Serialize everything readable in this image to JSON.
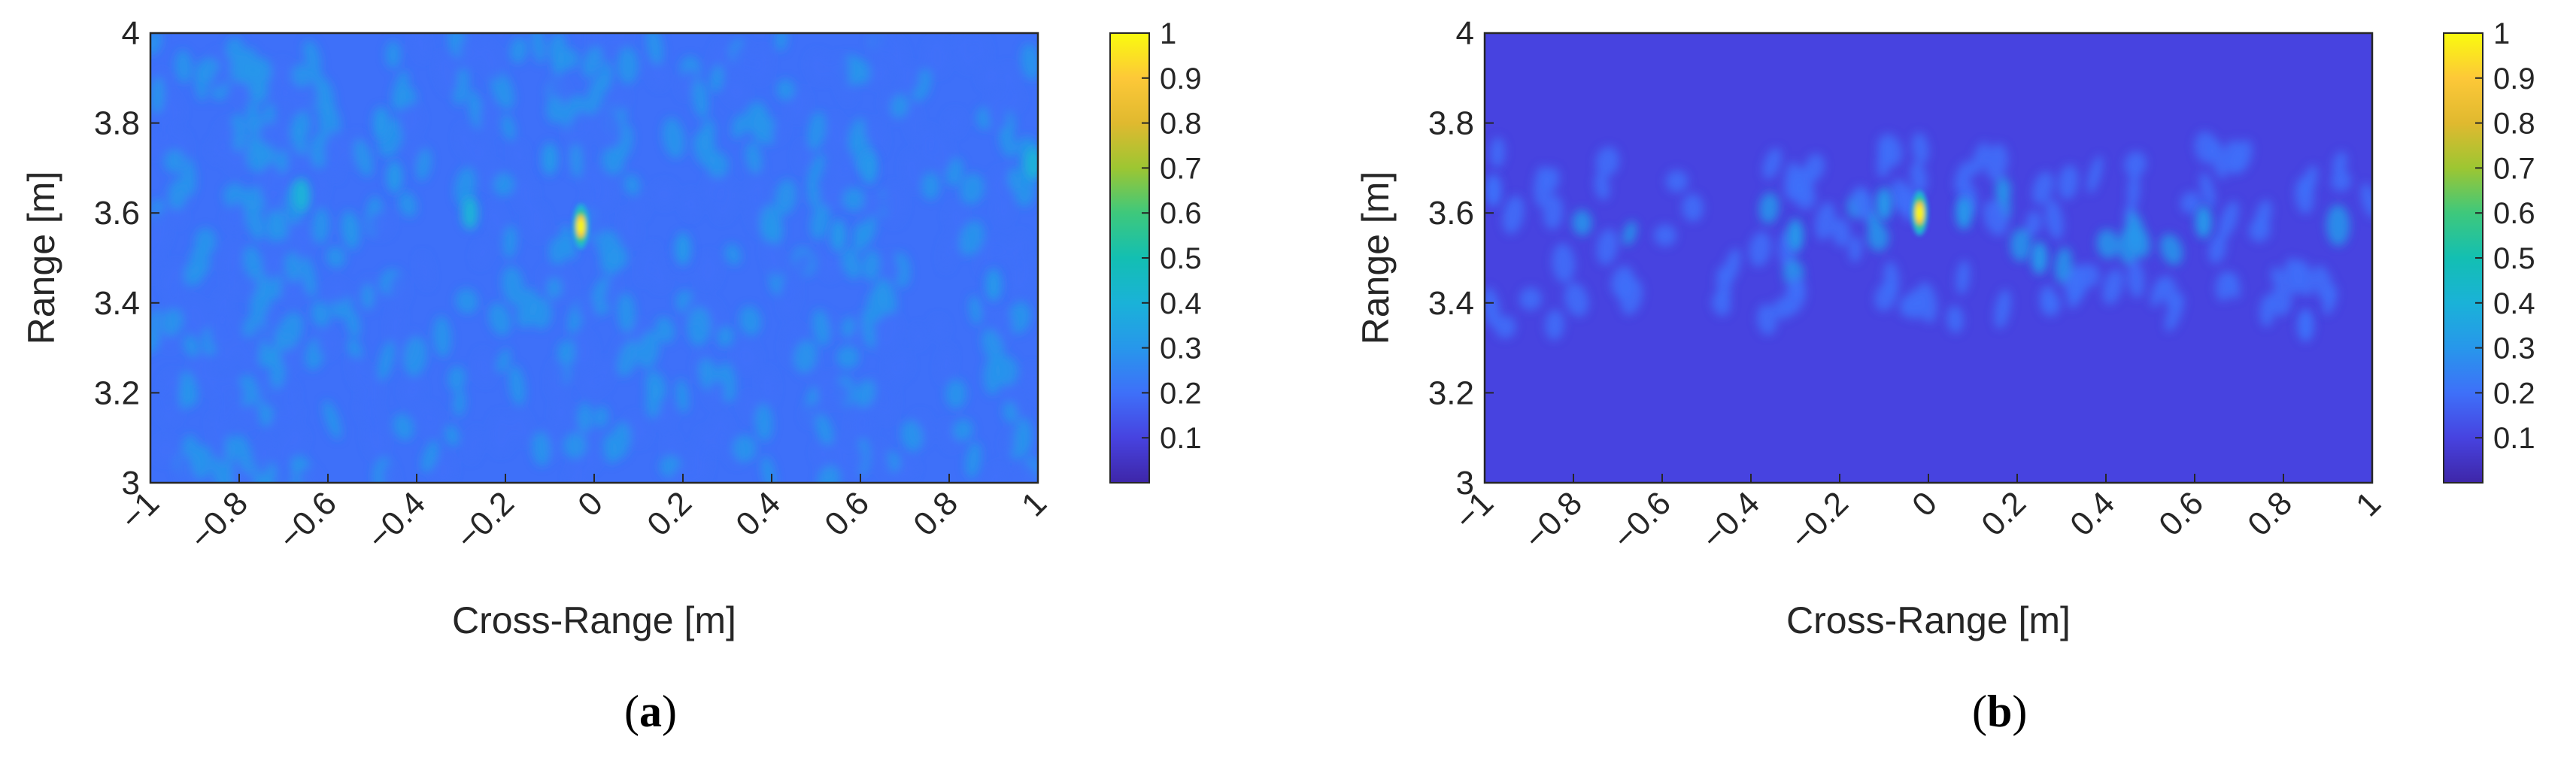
{
  "chart_data": [
    {
      "type": "heatmap",
      "panel_label": "a",
      "xlabel": "Cross-Range [m]",
      "ylabel": "Range [m]",
      "xlim": [
        -1,
        1
      ],
      "ylim": [
        3,
        4
      ],
      "xticks": [
        "−1",
        "−0.8",
        "−0.6",
        "−0.4",
        "−0.2",
        "0",
        "0.2",
        "0.4",
        "0.6",
        "0.8",
        "1"
      ],
      "xtick_values": [
        -1,
        -0.8,
        -0.6,
        -0.4,
        -0.2,
        0,
        0.2,
        0.4,
        0.6,
        0.8,
        1
      ],
      "yticks": [
        "3",
        "3.2",
        "3.4",
        "3.6",
        "3.8",
        "4"
      ],
      "ytick_values": [
        3,
        3.2,
        3.4,
        3.6,
        3.8,
        4
      ],
      "colorbar": {
        "colormap": "parula",
        "range": [
          0,
          1
        ],
        "ticks": [
          "0.1",
          "0.2",
          "0.3",
          "0.4",
          "0.5",
          "0.6",
          "0.7",
          "0.8",
          "0.9",
          "1"
        ],
        "tick_values": [
          0.1,
          0.2,
          0.3,
          0.4,
          0.5,
          0.6,
          0.7,
          0.8,
          0.9,
          1
        ]
      },
      "peak": {
        "x": -0.03,
        "y": 3.57,
        "value": 1.0
      },
      "background_level": 0.15,
      "notable_blobs": [
        {
          "x": -0.66,
          "y": 3.64,
          "value": 0.35
        },
        {
          "x": -0.48,
          "y": 3.8,
          "value": 0.3
        },
        {
          "x": -0.45,
          "y": 3.68,
          "value": 0.3
        },
        {
          "x": -0.28,
          "y": 3.6,
          "value": 0.32
        },
        {
          "x": -0.1,
          "y": 3.72,
          "value": 0.3
        },
        {
          "x": 0.2,
          "y": 3.52,
          "value": 0.3
        },
        {
          "x": 0.55,
          "y": 3.55,
          "value": 0.3
        },
        {
          "x": 0.62,
          "y": 3.7,
          "value": 0.28
        },
        {
          "x": 0.9,
          "y": 3.44,
          "value": 0.3
        },
        {
          "x": 0.99,
          "y": 3.71,
          "value": 0.32
        }
      ]
    },
    {
      "type": "heatmap",
      "panel_label": "b",
      "xlabel": "Cross-Range [m]",
      "ylabel": "Range [m]",
      "xlim": [
        -1,
        1
      ],
      "ylim": [
        3,
        4
      ],
      "xticks": [
        "−1",
        "−0.8",
        "−0.6",
        "−0.4",
        "−0.2",
        "0",
        "0.2",
        "0.4",
        "0.6",
        "0.8",
        "1"
      ],
      "xtick_values": [
        -1,
        -0.8,
        -0.6,
        -0.4,
        -0.2,
        0,
        0.2,
        0.4,
        0.6,
        0.8,
        1
      ],
      "yticks": [
        "3",
        "3.2",
        "3.4",
        "3.6",
        "3.8",
        "4"
      ],
      "ytick_values": [
        3,
        3.2,
        3.4,
        3.6,
        3.8,
        4
      ],
      "colorbar": {
        "colormap": "parula",
        "range": [
          0,
          1
        ],
        "ticks": [
          "0.1",
          "0.2",
          "0.3",
          "0.4",
          "0.5",
          "0.6",
          "0.7",
          "0.8",
          "0.9",
          "1"
        ],
        "tick_values": [
          0.1,
          0.2,
          0.3,
          0.4,
          0.5,
          0.6,
          0.7,
          0.8,
          0.9,
          1
        ]
      },
      "peak": {
        "x": -0.02,
        "y": 3.6,
        "value": 1.0
      },
      "background_level": 0.06,
      "notable_blobs": [
        {
          "x": -0.3,
          "y": 3.55,
          "value": 0.25
        },
        {
          "x": -0.1,
          "y": 3.62,
          "value": 0.22
        },
        {
          "x": 0.08,
          "y": 3.6,
          "value": 0.22
        },
        {
          "x": 0.25,
          "y": 3.5,
          "value": 0.22
        },
        {
          "x": 0.62,
          "y": 3.58,
          "value": 0.22
        },
        {
          "x": 0.85,
          "y": 3.35,
          "value": 0.18
        },
        {
          "x": -0.98,
          "y": 3.65,
          "value": 0.2
        }
      ]
    }
  ]
}
